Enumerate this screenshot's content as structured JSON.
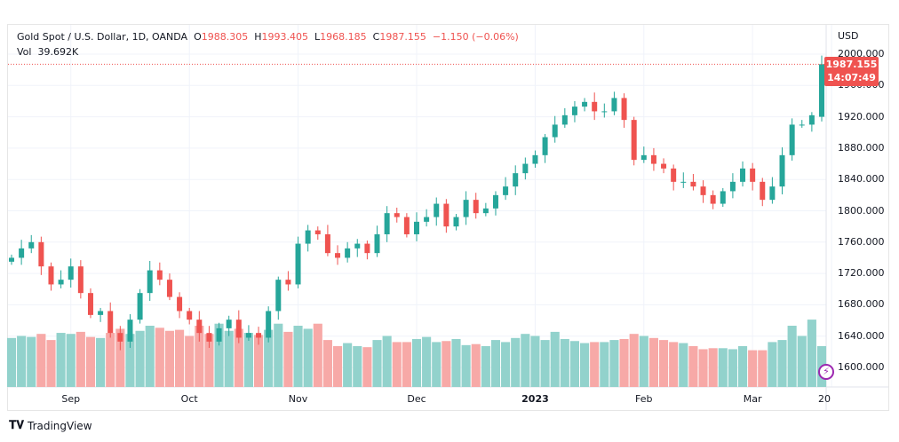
{
  "legend": {
    "symbol": "Gold Spot / U.S. Dollar, 1D, OANDA",
    "o_label": "O",
    "o": "1988.305",
    "h_label": "H",
    "h": "1993.405",
    "l_label": "L",
    "l": "1968.185",
    "c_label": "C",
    "c": "1987.155",
    "change": "−1.150 (−0.06%)",
    "vol_label": "Vol",
    "vol": "39.692K"
  },
  "last_price": {
    "price": "1987.155",
    "countdown": "14:07:49"
  },
  "footer": {
    "brand": "TradingView"
  },
  "chart_data": {
    "type": "candlestick",
    "currency": "USD",
    "ylim": [
      1570,
      2025
    ],
    "y_ticks": [
      "2000.000",
      "1960.000",
      "1920.000",
      "1880.000",
      "1840.000",
      "1800.000",
      "1760.000",
      "1720.000",
      "1680.000",
      "1640.000",
      "1600.000"
    ],
    "y_tick_values": [
      2000,
      1960,
      1920,
      1880,
      1840,
      1800,
      1760,
      1720,
      1680,
      1640,
      1600
    ],
    "x_labels": [
      {
        "label": "Sep",
        "index": 6,
        "bold": false
      },
      {
        "label": "Oct",
        "index": 18,
        "bold": false
      },
      {
        "label": "Nov",
        "index": 29,
        "bold": false
      },
      {
        "label": "Dec",
        "index": 41,
        "bold": false
      },
      {
        "label": "2023",
        "index": 53,
        "bold": true
      },
      {
        "label": "Feb",
        "index": 64,
        "bold": false
      },
      {
        "label": "Mar",
        "index": 75,
        "bold": false
      },
      {
        "label": "20",
        "index": 83,
        "bold": false
      }
    ],
    "first_open": 1735,
    "close": [
      1740,
      1752,
      1760,
      1729,
      1706,
      1712,
      1729,
      1695,
      1667,
      1672,
      1644,
      1633,
      1661,
      1695,
      1724,
      1712,
      1690,
      1672,
      1661,
      1644,
      1633,
      1650,
      1661,
      1638,
      1644,
      1638,
      1672,
      1712,
      1706,
      1758,
      1775,
      1770,
      1746,
      1740,
      1752,
      1758,
      1746,
      1770,
      1797,
      1792,
      1770,
      1786,
      1792,
      1809,
      1780,
      1792,
      1814,
      1797,
      1803,
      1820,
      1831,
      1848,
      1860,
      1871,
      1894,
      1910,
      1922,
      1933,
      1939,
      1927,
      1927,
      1944,
      1916,
      1865,
      1871,
      1860,
      1854,
      1837,
      1837,
      1831,
      1820,
      1809,
      1825,
      1837,
      1854,
      1837,
      1814,
      1831,
      1871,
      1910,
      1910,
      1922,
      1987.155
    ],
    "volume_k": [
      48,
      50,
      49,
      52,
      46,
      53,
      52,
      54,
      49,
      48,
      53,
      57,
      52,
      55,
      60,
      58,
      55,
      56,
      50,
      60,
      52,
      62,
      55,
      57,
      53,
      51,
      56,
      62,
      54,
      60,
      57,
      62,
      46,
      40,
      43,
      40,
      39,
      46,
      50,
      44,
      44,
      47,
      49,
      44,
      45,
      47,
      41,
      42,
      40,
      46,
      44,
      48,
      52,
      50,
      46,
      54,
      47,
      45,
      43,
      44,
      44,
      46,
      47,
      52,
      50,
      48,
      46,
      44,
      43,
      40,
      37,
      38,
      38,
      37,
      40,
      36,
      36,
      44,
      46,
      60,
      50,
      66,
      40
    ]
  }
}
